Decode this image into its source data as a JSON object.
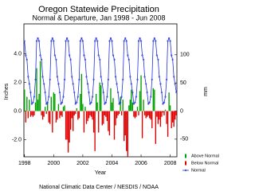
{
  "chart_data": {
    "type": "bar-line",
    "title": "Oregon Statewide Precipitation",
    "subtitle": "Normal & Departure, Jan 1998 - Jun 2008",
    "xlabel": "Year",
    "ylabel": "Inches",
    "y2label": "mm",
    "footer": "National Climatic Data Center / NESDIS / NOAA",
    "legend": "right",
    "categories": [
      "1998",
      null,
      null,
      null,
      null,
      null,
      null,
      null,
      null,
      null,
      null,
      null,
      null,
      null,
      null,
      null,
      null,
      null,
      null,
      null,
      null,
      null,
      null,
      null,
      "2000",
      null,
      null,
      null,
      null,
      null,
      null,
      null,
      null,
      null,
      null,
      null,
      null,
      null,
      null,
      null,
      null,
      null,
      null,
      null,
      null,
      null,
      null,
      null,
      "2002",
      null,
      null,
      null,
      null,
      null,
      null,
      null,
      null,
      null,
      null,
      null,
      null,
      null,
      null,
      null,
      null,
      null,
      null,
      null,
      null,
      null,
      null,
      null,
      "2004",
      null,
      null,
      null,
      null,
      null,
      null,
      null,
      null,
      null,
      null,
      null,
      null,
      null,
      null,
      null,
      null,
      null,
      null,
      null,
      null,
      null,
      null,
      null,
      "2006",
      null,
      null,
      null,
      null,
      null,
      null,
      null,
      null,
      null,
      null,
      null,
      null,
      null,
      null,
      null,
      null,
      null,
      null,
      null,
      null,
      null,
      null,
      null,
      "2008",
      null,
      null,
      null,
      null,
      null
    ],
    "ylim": [
      -3.2,
      6.1
    ],
    "yticks": [
      {
        "value": -2,
        "label": "-2.0"
      },
      {
        "value": 0,
        "label": "0.0"
      },
      {
        "value": 2,
        "label": "2.0"
      },
      {
        "value": 4,
        "label": "4.0"
      }
    ],
    "y2lim": [
      -81.3,
      154.9
    ],
    "y2ticks": [
      -50,
      0,
      50,
      100
    ],
    "series": [
      {
        "name": "Above Normal",
        "color": "#00a000",
        "values": [
          1.5,
          null,
          1.0,
          null,
          0.8,
          null,
          null,
          null,
          null,
          0.6,
          3.0,
          0.8,
          1.2,
          3.5,
          null,
          null,
          null,
          0.3,
          null,
          0.6,
          null,
          null,
          1.0,
          null,
          1.3,
          1.2,
          null,
          null,
          0.5,
          null,
          null,
          null,
          0.3,
          0.4,
          null,
          null,
          null,
          null,
          null,
          null,
          null,
          null,
          null,
          0.2,
          null,
          null,
          1.2,
          2.6,
          0.5,
          null,
          0.3,
          null,
          null,
          null,
          null,
          null,
          null,
          null,
          null,
          1.2,
          0.6,
          null,
          2.0,
          1.8,
          null,
          null,
          null,
          null,
          null,
          null,
          null,
          1.6,
          0.6,
          0.9,
          null,
          null,
          null,
          null,
          null,
          1.0,
          null,
          0.8,
          null,
          null,
          null,
          null,
          0.4,
          0.8,
          1.5,
          0.6,
          null,
          null,
          null,
          0.3,
          null,
          1.4,
          2.5,
          null,
          0.8,
          null,
          null,
          null,
          null,
          null,
          null,
          null,
          1.6,
          1.5,
          null,
          null,
          null,
          null,
          null,
          null,
          null,
          null,
          0.1,
          null,
          null,
          1.3,
          0.4,
          null,
          null,
          null,
          null,
          null
        ]
      },
      {
        "name": "Below Normal",
        "color": "#e00000",
        "values": [
          null,
          -0.8,
          null,
          -0.5,
          null,
          -0.4,
          -0.3,
          -0.4,
          -0.3,
          null,
          null,
          null,
          null,
          null,
          -0.3,
          -0.6,
          -0.4,
          null,
          -0.2,
          null,
          -0.8,
          -0.9,
          null,
          -1.5,
          null,
          null,
          -0.8,
          -0.6,
          null,
          -0.5,
          -0.3,
          -0.4,
          null,
          null,
          -2.0,
          -2.0,
          -2.9,
          -2.2,
          -1.3,
          -0.5,
          -1.4,
          -0.3,
          -0.2,
          null,
          -0.6,
          -0.5,
          null,
          null,
          null,
          -1.5,
          null,
          -0.9,
          -0.7,
          -0.5,
          -0.3,
          -0.4,
          -0.6,
          -1.5,
          -2.8,
          null,
          null,
          -1.5,
          null,
          null,
          -1.0,
          -0.9,
          -0.3,
          -0.4,
          -0.7,
          -1.4,
          -1.7,
          null,
          null,
          null,
          -2.0,
          -1.0,
          -0.5,
          -0.3,
          -0.2,
          null,
          -0.3,
          null,
          -2.1,
          -1.7,
          -2.8,
          -3.2,
          null,
          null,
          null,
          null,
          -0.4,
          -0.5,
          -0.4,
          null,
          -0.3,
          null,
          null,
          -1.9,
          null,
          -0.3,
          -0.5,
          -0.4,
          -0.3,
          -0.5,
          -0.6,
          -1.2,
          null,
          null,
          -2.3,
          -0.4,
          -0.9,
          -0.6,
          -1.1,
          -0.4,
          -0.1,
          -0.3,
          null,
          -0.9,
          -1.8,
          null,
          null,
          -1.2,
          -0.8,
          -1.1,
          -0.6,
          -0.3
        ]
      },
      {
        "name": "Normal",
        "color": "#2030e0",
        "values": [
          4.9,
          3.9,
          3.6,
          2.4,
          1.9,
          1.3,
          0.5,
          0.6,
          1.0,
          2.2,
          4.9,
          5.1,
          4.9,
          3.9,
          3.6,
          2.4,
          1.9,
          1.3,
          0.5,
          0.6,
          1.0,
          2.2,
          4.9,
          5.1,
          4.9,
          3.9,
          3.6,
          2.4,
          1.9,
          1.3,
          0.5,
          0.6,
          1.0,
          2.2,
          4.9,
          5.1,
          4.9,
          3.9,
          3.6,
          2.4,
          1.9,
          1.3,
          0.5,
          0.6,
          1.0,
          2.2,
          4.9,
          5.1,
          4.9,
          3.9,
          3.6,
          2.4,
          1.9,
          1.3,
          0.5,
          0.6,
          1.0,
          2.2,
          4.9,
          5.1,
          4.9,
          3.9,
          3.6,
          2.4,
          1.9,
          1.3,
          0.5,
          0.6,
          1.0,
          2.2,
          4.9,
          5.1,
          4.9,
          3.9,
          3.6,
          2.4,
          1.9,
          1.3,
          0.5,
          0.6,
          1.0,
          2.2,
          4.9,
          5.1,
          4.9,
          3.9,
          3.6,
          2.4,
          1.9,
          1.3,
          0.5,
          0.6,
          1.0,
          2.2,
          4.9,
          5.1,
          4.9,
          3.9,
          3.6,
          2.4,
          1.9,
          1.3,
          0.5,
          0.6,
          1.0,
          2.2,
          4.9,
          5.1,
          4.9,
          3.9,
          3.6,
          2.4,
          1.9,
          1.3,
          0.5,
          0.6,
          1.0,
          2.2,
          4.9,
          5.1,
          4.9,
          3.9,
          3.6,
          2.4,
          1.9,
          1.3
        ]
      }
    ]
  }
}
